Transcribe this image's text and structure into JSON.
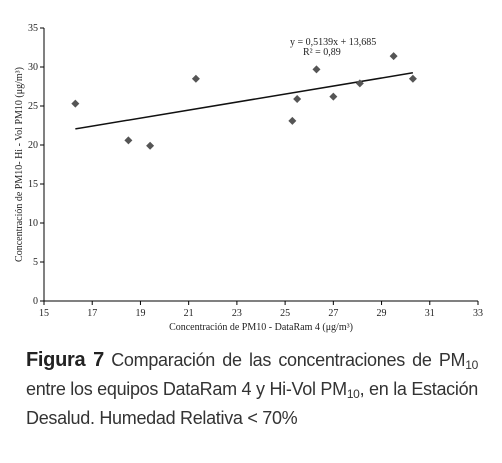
{
  "chart_data": {
    "type": "scatter",
    "x_label": "Concentración de PM10  - DataRam 4 (μg/m³)",
    "y_label": "Concentración de PM10- Hi - Vol PM10 (μg/m³)",
    "series": [
      {
        "color": "#555555",
        "x": [
          16.3,
          18.5,
          19.4,
          21.3,
          25.3,
          25.5,
          26.3,
          27.0,
          28.1,
          29.5,
          30.3
        ],
        "values": [
          25.3,
          20.6,
          19.9,
          28.5,
          23.1,
          25.9,
          29.7,
          26.2,
          27.9,
          31.4,
          28.5
        ]
      }
    ],
    "trendline": {
      "slope": 0.5139,
      "intercept": 13.685,
      "equation": "y = 0,5139x + 13,685",
      "r2": "R² = 0,89"
    },
    "xlim": [
      15,
      33
    ],
    "xticks": [
      15,
      17,
      19,
      21,
      23,
      25,
      27,
      29,
      31,
      33
    ],
    "ylim": [
      0,
      35
    ],
    "yticks": [
      0,
      5,
      10,
      15,
      20,
      25,
      30,
      35
    ]
  },
  "caption": {
    "label": "Figura 7",
    "segments": [
      {
        "text": " Comparación de las concentraciones de PM"
      },
      {
        "text": "10",
        "sub": true
      },
      {
        "text": " entre los equipos DataRam 4 y Hi-Vol PM"
      },
      {
        "text": "10",
        "sub": true
      },
      {
        "text": ", en la Estación Desalud. Humedad Relativa < 70%"
      }
    ]
  }
}
